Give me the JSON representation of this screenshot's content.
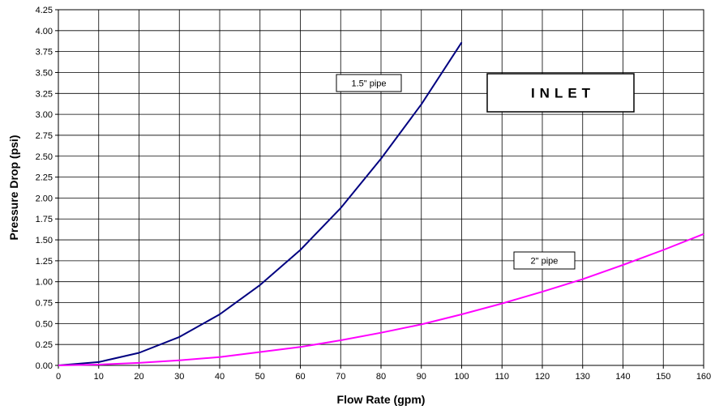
{
  "chart_data": {
    "type": "line",
    "xlabel": "Flow Rate (gpm)",
    "ylabel": "Pressure Drop (psi)",
    "xlim": [
      0,
      160
    ],
    "ylim": [
      0,
      4.25
    ],
    "x_ticks": [
      "0",
      "10",
      "20",
      "30",
      "40",
      "50",
      "60",
      "70",
      "80",
      "90",
      "100",
      "110",
      "120",
      "130",
      "140",
      "150",
      "160"
    ],
    "y_ticks": [
      "0.00",
      "0.25",
      "0.50",
      "0.75",
      "1.00",
      "1.25",
      "1.50",
      "1.75",
      "2.00",
      "2.25",
      "2.50",
      "2.75",
      "3.00",
      "3.25",
      "3.50",
      "3.75",
      "4.00",
      "4.25"
    ],
    "grid": true,
    "series": [
      {
        "name": "1.5\" pipe",
        "color": "#000080",
        "x": [
          0,
          10,
          20,
          30,
          40,
          50,
          60,
          70,
          80,
          90,
          100
        ],
        "y": [
          0,
          0.04,
          0.15,
          0.34,
          0.61,
          0.96,
          1.38,
          1.88,
          2.47,
          3.12,
          3.86
        ]
      },
      {
        "name": "2\" pipe",
        "color": "#ff00ff",
        "x": [
          0,
          10,
          20,
          30,
          40,
          50,
          60,
          70,
          80,
          90,
          100,
          110,
          120,
          130,
          140,
          150,
          160
        ],
        "y": [
          0,
          0.01,
          0.03,
          0.06,
          0.1,
          0.16,
          0.22,
          0.3,
          0.39,
          0.49,
          0.61,
          0.74,
          0.88,
          1.03,
          1.2,
          1.38,
          1.57
        ]
      }
    ],
    "annotations": {
      "inlet_label": "INLET"
    }
  }
}
